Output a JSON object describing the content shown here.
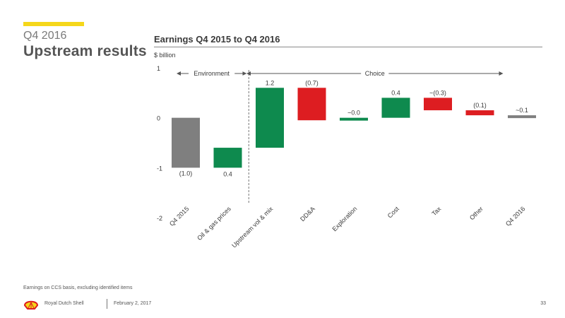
{
  "header": {
    "subtitle": "Q4 2016",
    "title": "Upstream results",
    "accent_color": "#F5D71A"
  },
  "chart_data": {
    "type": "bar",
    "subtype": "waterfall",
    "title": "Earnings Q4 2015 to Q4 2016",
    "ylabel": "$ billion",
    "ylim": [
      -2,
      1
    ],
    "yticks": [
      "1",
      "0",
      "-1",
      "-2"
    ],
    "brackets": [
      {
        "label": "Environment",
        "from_category": "Q4 2015",
        "to_category": "Oil & gas prices"
      },
      {
        "label": "Choice",
        "from_category": "Upstream vol & mix",
        "to_category": "Other"
      }
    ],
    "divider_after_category": "Oil & gas prices",
    "bars": [
      {
        "category": "Q4 2015",
        "label": "(1.0)",
        "start": 0,
        "end": -1.0,
        "color": "#7f7f7f"
      },
      {
        "category": "Oil & gas prices",
        "label": "0.4",
        "start": -1.0,
        "end": -0.6,
        "color": "#0E8A4E"
      },
      {
        "category": "Upstream vol & mix",
        "label": "1.2",
        "start": -0.6,
        "end": 0.6,
        "color": "#0E8A4E"
      },
      {
        "category": "DD&A",
        "label": "(0.7)",
        "start": 0.6,
        "end": -0.05,
        "color": "#DD1D21"
      },
      {
        "category": "Exploration",
        "label": "~0.0",
        "start": -0.05,
        "end": -0.0,
        "color": "#0E8A4E"
      },
      {
        "category": "Cost",
        "label": "0.4",
        "start": -0.0,
        "end": 0.4,
        "color": "#0E8A4E"
      },
      {
        "category": "Tax",
        "label": "~(0.3)",
        "start": 0.4,
        "end": 0.15,
        "color": "#DD1D21"
      },
      {
        "category": "Other",
        "label": "(0.1)",
        "start": 0.15,
        "end": 0.05,
        "color": "#DD1D21"
      },
      {
        "category": "Q4 2016",
        "label": "~0.1",
        "start": 0,
        "end": 0.05,
        "color": "#7f7f7f"
      }
    ]
  },
  "footnote": "Earnings on CCS basis, excluding identified items",
  "footer": {
    "company": "Royal Dutch Shell",
    "date": "February 2, 2017",
    "page": "33"
  }
}
